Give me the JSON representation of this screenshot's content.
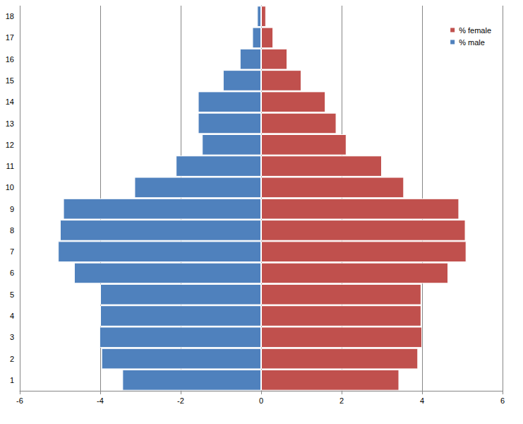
{
  "chart_data": {
    "type": "bar",
    "orientation": "horizontal",
    "categories": [
      "1",
      "2",
      "3",
      "4",
      "5",
      "6",
      "7",
      "8",
      "9",
      "10",
      "11",
      "12",
      "13",
      "14",
      "15",
      "16",
      "17",
      "18"
    ],
    "series": [
      {
        "name": "% female",
        "color": "#c0504d",
        "values": [
          3.43,
          3.9,
          4.0,
          3.98,
          3.98,
          4.65,
          5.1,
          5.08,
          4.92,
          3.55,
          3.0,
          2.12,
          1.87,
          1.6,
          1.0,
          0.65,
          0.3,
          0.12
        ]
      },
      {
        "name": "% male",
        "color": "#4f81bd",
        "values": [
          -3.45,
          -3.97,
          -4.02,
          -4.0,
          -4.0,
          -4.65,
          -5.05,
          -5.0,
          -4.92,
          -3.15,
          -2.12,
          -1.47,
          -1.57,
          -1.57,
          -0.95,
          -0.53,
          -0.22,
          -0.1
        ]
      }
    ],
    "xlim": [
      -6,
      6
    ],
    "xticks": [
      -6,
      -4,
      -2,
      0,
      2,
      4,
      6
    ],
    "grid": true,
    "legend": "top-right"
  }
}
